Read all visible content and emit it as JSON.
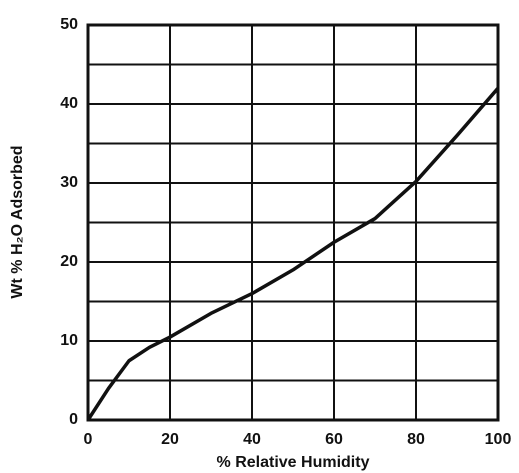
{
  "chart_data": {
    "type": "line",
    "x_label": "% Relative Humidity",
    "y_label": "Wt % H₂O Adsorbed",
    "x": [
      0,
      5,
      10,
      15,
      20,
      30,
      40,
      50,
      60,
      70,
      80,
      90,
      100
    ],
    "series": [
      {
        "color": "#111111",
        "values": [
          0,
          4,
          7.5,
          9.2,
          10.5,
          13.5,
          16,
          19,
          22.5,
          25.5,
          30.2,
          36,
          42
        ]
      }
    ],
    "xlim": [
      0,
      100
    ],
    "xticks": [
      0,
      20,
      40,
      60,
      80,
      100
    ],
    "ylim": [
      0,
      50
    ],
    "yticks": [
      0,
      10,
      20,
      30,
      40,
      50
    ],
    "y_minor_grid": [
      5,
      15,
      25,
      35,
      45
    ],
    "grid": true
  }
}
